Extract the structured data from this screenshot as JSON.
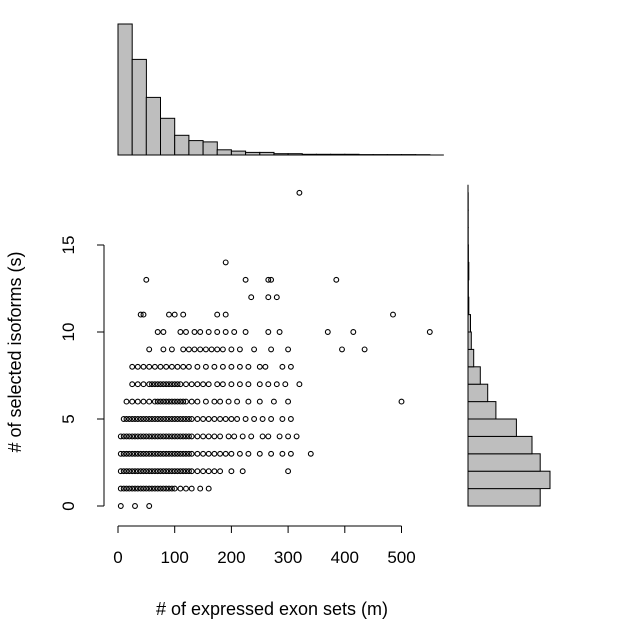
{
  "chart_data": [
    {
      "type": "scatter",
      "xlabel": "# of expressed exon sets (m)",
      "ylabel": "# of selected isoforms (s)",
      "xlim": [
        0,
        550
      ],
      "ylim": [
        0,
        18
      ],
      "x_ticks": [
        0,
        100,
        200,
        300,
        400,
        500
      ],
      "y_ticks": [
        0,
        5,
        10,
        15
      ],
      "marker": "open-circle",
      "points": [
        [
          5,
          0
        ],
        [
          30,
          0
        ],
        [
          55,
          0
        ],
        [
          5,
          1
        ],
        [
          10,
          1
        ],
        [
          15,
          1
        ],
        [
          20,
          1
        ],
        [
          25,
          1
        ],
        [
          30,
          1
        ],
        [
          35,
          1
        ],
        [
          40,
          1
        ],
        [
          45,
          1
        ],
        [
          50,
          1
        ],
        [
          55,
          1
        ],
        [
          60,
          1
        ],
        [
          65,
          1
        ],
        [
          70,
          1
        ],
        [
          75,
          1
        ],
        [
          80,
          1
        ],
        [
          85,
          1
        ],
        [
          90,
          1
        ],
        [
          95,
          1
        ],
        [
          100,
          1
        ],
        [
          110,
          1
        ],
        [
          120,
          1
        ],
        [
          130,
          1
        ],
        [
          145,
          1
        ],
        [
          160,
          1
        ],
        [
          5,
          2
        ],
        [
          10,
          2
        ],
        [
          15,
          2
        ],
        [
          20,
          2
        ],
        [
          25,
          2
        ],
        [
          30,
          2
        ],
        [
          35,
          2
        ],
        [
          40,
          2
        ],
        [
          45,
          2
        ],
        [
          50,
          2
        ],
        [
          55,
          2
        ],
        [
          60,
          2
        ],
        [
          65,
          2
        ],
        [
          70,
          2
        ],
        [
          75,
          2
        ],
        [
          80,
          2
        ],
        [
          85,
          2
        ],
        [
          90,
          2
        ],
        [
          95,
          2
        ],
        [
          100,
          2
        ],
        [
          105,
          2
        ],
        [
          110,
          2
        ],
        [
          115,
          2
        ],
        [
          120,
          2
        ],
        [
          125,
          2
        ],
        [
          130,
          2
        ],
        [
          140,
          2
        ],
        [
          150,
          2
        ],
        [
          160,
          2
        ],
        [
          170,
          2
        ],
        [
          180,
          2
        ],
        [
          200,
          2
        ],
        [
          220,
          2
        ],
        [
          300,
          2
        ],
        [
          5,
          3
        ],
        [
          10,
          3
        ],
        [
          15,
          3
        ],
        [
          20,
          3
        ],
        [
          25,
          3
        ],
        [
          30,
          3
        ],
        [
          35,
          3
        ],
        [
          40,
          3
        ],
        [
          45,
          3
        ],
        [
          50,
          3
        ],
        [
          55,
          3
        ],
        [
          60,
          3
        ],
        [
          65,
          3
        ],
        [
          70,
          3
        ],
        [
          75,
          3
        ],
        [
          80,
          3
        ],
        [
          85,
          3
        ],
        [
          90,
          3
        ],
        [
          95,
          3
        ],
        [
          100,
          3
        ],
        [
          105,
          3
        ],
        [
          110,
          3
        ],
        [
          115,
          3
        ],
        [
          120,
          3
        ],
        [
          125,
          3
        ],
        [
          130,
          3
        ],
        [
          140,
          3
        ],
        [
          150,
          3
        ],
        [
          160,
          3
        ],
        [
          170,
          3
        ],
        [
          180,
          3
        ],
        [
          190,
          3
        ],
        [
          200,
          3
        ],
        [
          215,
          3
        ],
        [
          230,
          3
        ],
        [
          250,
          3
        ],
        [
          270,
          3
        ],
        [
          290,
          3
        ],
        [
          305,
          3
        ],
        [
          340,
          3
        ],
        [
          5,
          4
        ],
        [
          10,
          4
        ],
        [
          15,
          4
        ],
        [
          20,
          4
        ],
        [
          25,
          4
        ],
        [
          30,
          4
        ],
        [
          35,
          4
        ],
        [
          40,
          4
        ],
        [
          45,
          4
        ],
        [
          50,
          4
        ],
        [
          55,
          4
        ],
        [
          60,
          4
        ],
        [
          65,
          4
        ],
        [
          70,
          4
        ],
        [
          75,
          4
        ],
        [
          80,
          4
        ],
        [
          85,
          4
        ],
        [
          90,
          4
        ],
        [
          95,
          4
        ],
        [
          100,
          4
        ],
        [
          105,
          4
        ],
        [
          110,
          4
        ],
        [
          115,
          4
        ],
        [
          120,
          4
        ],
        [
          125,
          4
        ],
        [
          130,
          4
        ],
        [
          140,
          4
        ],
        [
          150,
          4
        ],
        [
          160,
          4
        ],
        [
          170,
          4
        ],
        [
          180,
          4
        ],
        [
          195,
          4
        ],
        [
          205,
          4
        ],
        [
          220,
          4
        ],
        [
          235,
          4
        ],
        [
          255,
          4
        ],
        [
          265,
          4
        ],
        [
          285,
          4
        ],
        [
          300,
          4
        ],
        [
          315,
          4
        ],
        [
          10,
          5
        ],
        [
          15,
          5
        ],
        [
          20,
          5
        ],
        [
          25,
          5
        ],
        [
          30,
          5
        ],
        [
          35,
          5
        ],
        [
          40,
          5
        ],
        [
          45,
          5
        ],
        [
          50,
          5
        ],
        [
          55,
          5
        ],
        [
          60,
          5
        ],
        [
          65,
          5
        ],
        [
          70,
          5
        ],
        [
          75,
          5
        ],
        [
          80,
          5
        ],
        [
          85,
          5
        ],
        [
          90,
          5
        ],
        [
          95,
          5
        ],
        [
          100,
          5
        ],
        [
          105,
          5
        ],
        [
          110,
          5
        ],
        [
          115,
          5
        ],
        [
          120,
          5
        ],
        [
          125,
          5
        ],
        [
          130,
          5
        ],
        [
          140,
          5
        ],
        [
          150,
          5
        ],
        [
          160,
          5
        ],
        [
          170,
          5
        ],
        [
          180,
          5
        ],
        [
          190,
          5
        ],
        [
          200,
          5
        ],
        [
          210,
          5
        ],
        [
          225,
          5
        ],
        [
          240,
          5
        ],
        [
          255,
          5
        ],
        [
          270,
          5
        ],
        [
          290,
          5
        ],
        [
          305,
          5
        ],
        [
          15,
          6
        ],
        [
          25,
          6
        ],
        [
          35,
          6
        ],
        [
          45,
          6
        ],
        [
          55,
          6
        ],
        [
          65,
          6
        ],
        [
          70,
          6
        ],
        [
          75,
          6
        ],
        [
          80,
          6
        ],
        [
          85,
          6
        ],
        [
          90,
          6
        ],
        [
          95,
          6
        ],
        [
          100,
          6
        ],
        [
          105,
          6
        ],
        [
          110,
          6
        ],
        [
          115,
          6
        ],
        [
          120,
          6
        ],
        [
          130,
          6
        ],
        [
          140,
          6
        ],
        [
          155,
          6
        ],
        [
          170,
          6
        ],
        [
          180,
          6
        ],
        [
          195,
          6
        ],
        [
          210,
          6
        ],
        [
          230,
          6
        ],
        [
          250,
          6
        ],
        [
          275,
          6
        ],
        [
          300,
          6
        ],
        [
          500,
          6
        ],
        [
          25,
          7
        ],
        [
          35,
          7
        ],
        [
          45,
          7
        ],
        [
          55,
          7
        ],
        [
          60,
          7
        ],
        [
          65,
          7
        ],
        [
          70,
          7
        ],
        [
          75,
          7
        ],
        [
          80,
          7
        ],
        [
          85,
          7
        ],
        [
          90,
          7
        ],
        [
          95,
          7
        ],
        [
          100,
          7
        ],
        [
          105,
          7
        ],
        [
          110,
          7
        ],
        [
          120,
          7
        ],
        [
          130,
          7
        ],
        [
          140,
          7
        ],
        [
          150,
          7
        ],
        [
          160,
          7
        ],
        [
          175,
          7
        ],
        [
          185,
          7
        ],
        [
          200,
          7
        ],
        [
          215,
          7
        ],
        [
          230,
          7
        ],
        [
          250,
          7
        ],
        [
          265,
          7
        ],
        [
          280,
          7
        ],
        [
          295,
          7
        ],
        [
          320,
          7
        ],
        [
          25,
          8
        ],
        [
          35,
          8
        ],
        [
          45,
          8
        ],
        [
          55,
          8
        ],
        [
          65,
          8
        ],
        [
          75,
          8
        ],
        [
          85,
          8
        ],
        [
          95,
          8
        ],
        [
          105,
          8
        ],
        [
          115,
          8
        ],
        [
          125,
          8
        ],
        [
          140,
          8
        ],
        [
          155,
          8
        ],
        [
          170,
          8
        ],
        [
          185,
          8
        ],
        [
          200,
          8
        ],
        [
          215,
          8
        ],
        [
          230,
          8
        ],
        [
          250,
          8
        ],
        [
          260,
          8
        ],
        [
          290,
          8
        ],
        [
          305,
          8
        ],
        [
          55,
          9
        ],
        [
          80,
          9
        ],
        [
          95,
          9
        ],
        [
          115,
          9
        ],
        [
          125,
          9
        ],
        [
          135,
          9
        ],
        [
          145,
          9
        ],
        [
          155,
          9
        ],
        [
          165,
          9
        ],
        [
          175,
          9
        ],
        [
          185,
          9
        ],
        [
          200,
          9
        ],
        [
          215,
          9
        ],
        [
          240,
          9
        ],
        [
          270,
          9
        ],
        [
          300,
          9
        ],
        [
          395,
          9
        ],
        [
          435,
          9
        ],
        [
          70,
          10
        ],
        [
          80,
          10
        ],
        [
          110,
          10
        ],
        [
          120,
          10
        ],
        [
          135,
          10
        ],
        [
          145,
          10
        ],
        [
          160,
          10
        ],
        [
          175,
          10
        ],
        [
          190,
          10
        ],
        [
          205,
          10
        ],
        [
          225,
          10
        ],
        [
          265,
          10
        ],
        [
          285,
          10
        ],
        [
          370,
          10
        ],
        [
          415,
          10
        ],
        [
          550,
          10
        ],
        [
          40,
          11
        ],
        [
          45,
          11
        ],
        [
          90,
          11
        ],
        [
          100,
          11
        ],
        [
          115,
          11
        ],
        [
          175,
          11
        ],
        [
          190,
          11
        ],
        [
          485,
          11
        ],
        [
          235,
          12
        ],
        [
          265,
          12
        ],
        [
          280,
          12
        ],
        [
          50,
          13
        ],
        [
          225,
          13
        ],
        [
          265,
          13
        ],
        [
          270,
          13
        ],
        [
          385,
          13
        ],
        [
          190,
          14
        ],
        [
          320,
          18
        ]
      ]
    },
    {
      "type": "bar",
      "orientation": "vertical",
      "xlim": [
        0,
        550
      ],
      "bin_edges": [
        0,
        25,
        50,
        75,
        100,
        125,
        150,
        175,
        200,
        225,
        250,
        275,
        300,
        325,
        350,
        375,
        400,
        425,
        450,
        475,
        500,
        525,
        550
      ],
      "values": [
        100,
        73,
        44,
        28,
        15,
        11,
        10,
        4,
        3,
        2,
        2,
        1,
        1,
        0.5,
        0.5,
        0.5,
        0.5,
        0.3,
        0.3,
        0.3,
        0.3,
        0.2
      ]
    },
    {
      "type": "bar",
      "orientation": "horizontal",
      "ylim": [
        0,
        18
      ],
      "bin_edges": [
        0,
        1,
        2,
        3,
        4,
        5,
        6,
        7,
        8,
        9,
        10,
        11,
        12,
        13,
        14,
        15,
        16,
        17,
        18
      ],
      "values": [
        88,
        100,
        88,
        78,
        59,
        34,
        24,
        15,
        7,
        4,
        3,
        1,
        0.5,
        1,
        0.5,
        0.3,
        0.3,
        0.3
      ]
    }
  ]
}
